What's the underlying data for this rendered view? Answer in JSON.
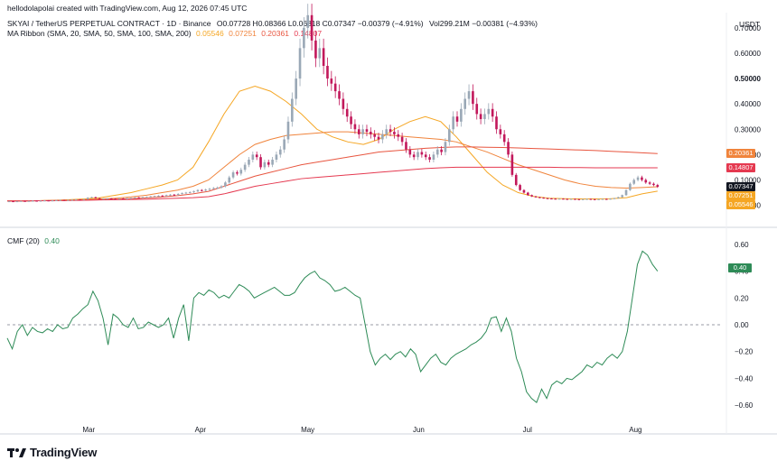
{
  "header": {
    "created_by": "hellodolapolai created with TradingView.com, Aug 12, 2026 07:45 UTC",
    "currency": "USDT",
    "symbol": "SKYAI / TetherUS PERPETUAL CONTRACT · 1D · Binance",
    "ohlc": "O0.07728 H0.08366 L0.06818 C0.07347 −0.00379 (−4.91%)",
    "volume": "Vol299.21M −0.00381 (−4.93%)",
    "ma_label": "MA Ribbon (SMA, 20, SMA, 50, SMA, 100, SMA, 200)",
    "ma_values": [
      "0.05546",
      "0.07251",
      "0.20361",
      "0.14807"
    ]
  },
  "cmf_label": "CMF (20)",
  "cmf_value": "0.40",
  "branding": "TradingView",
  "colors": {
    "up": "#9aa8b6",
    "down": "#c2185b",
    "sma20": "#f5a623",
    "sma50": "#f0843c",
    "sma100": "#e8553f",
    "sma200": "#e53950",
    "cmf": "#2e8b57",
    "price_tag": "#131722"
  },
  "chart_data": [
    {
      "type": "candlestick",
      "title": "SKYAI / TetherUS PERPETUAL CONTRACT · 1D · Binance",
      "x_tick_labels": [
        "Mar",
        "Apr",
        "May",
        "Jun",
        "Jul",
        "Aug"
      ],
      "y_tick_labels": [
        "0.70000",
        "0.60000",
        "0.50000",
        "0.40000",
        "0.30000",
        "0.20000",
        "0.10000",
        "0.00000"
      ],
      "ylim": [
        -0.03,
        0.76
      ],
      "price_tags": [
        {
          "value": 0.20361,
          "label": "0.20361",
          "color": "#f0843c"
        },
        {
          "value": 0.14807,
          "label": "0.14807",
          "color": "#e53950"
        },
        {
          "value": 0.07347,
          "label": "0.07347",
          "color": "#131722"
        },
        {
          "value": 0.07251,
          "label": "0.07251",
          "color": "#f5a623"
        },
        {
          "value": 0.05546,
          "label": "0.05546",
          "color": "#f5a623"
        }
      ],
      "series": [
        {
          "name": "SKYAI close",
          "values": [
            0.016,
            0.015,
            0.016,
            0.017,
            0.016,
            0.017,
            0.018,
            0.017,
            0.018,
            0.019,
            0.018,
            0.019,
            0.02,
            0.021,
            0.02,
            0.021,
            0.022,
            0.023,
            0.022,
            0.024,
            0.03,
            0.032,
            0.028,
            0.025,
            0.026,
            0.027,
            0.026,
            0.025,
            0.027,
            0.026,
            0.028,
            0.029,
            0.031,
            0.03,
            0.032,
            0.033,
            0.035,
            0.036,
            0.038,
            0.037,
            0.04,
            0.042,
            0.041,
            0.045,
            0.048,
            0.05,
            0.052,
            0.055,
            0.06,
            0.058,
            0.062,
            0.065,
            0.068,
            0.07,
            0.075,
            0.09,
            0.11,
            0.13,
            0.125,
            0.14,
            0.16,
            0.18,
            0.2,
            0.19,
            0.15,
            0.17,
            0.16,
            0.18,
            0.2,
            0.22,
            0.26,
            0.33,
            0.42,
            0.5,
            0.62,
            0.7,
            0.75,
            0.65,
            0.58,
            0.62,
            0.55,
            0.5,
            0.48,
            0.45,
            0.42,
            0.38,
            0.35,
            0.32,
            0.3,
            0.28,
            0.3,
            0.29,
            0.28,
            0.27,
            0.26,
            0.28,
            0.3,
            0.29,
            0.28,
            0.27,
            0.25,
            0.22,
            0.2,
            0.19,
            0.21,
            0.2,
            0.19,
            0.18,
            0.2,
            0.22,
            0.21,
            0.25,
            0.3,
            0.35,
            0.33,
            0.38,
            0.42,
            0.45,
            0.4,
            0.36,
            0.34,
            0.36,
            0.38,
            0.35,
            0.3,
            0.28,
            0.25,
            0.2,
            0.12,
            0.08,
            0.06,
            0.05,
            0.04,
            0.035,
            0.032,
            0.03,
            0.028,
            0.027,
            0.026,
            0.025,
            0.026,
            0.025,
            0.024,
            0.025,
            0.024,
            0.023,
            0.024,
            0.025,
            0.024,
            0.023,
            0.024,
            0.025,
            0.024,
            0.026,
            0.028,
            0.032,
            0.04,
            0.06,
            0.085,
            0.1,
            0.11,
            0.1,
            0.09,
            0.085,
            0.08,
            0.073
          ]
        },
        {
          "name": "SMA 20",
          "values": [
            0.017,
            0.017,
            0.018,
            0.02,
            0.022,
            0.025,
            0.03,
            0.04,
            0.05,
            0.065,
            0.08,
            0.1,
            0.15,
            0.25,
            0.36,
            0.45,
            0.47,
            0.45,
            0.41,
            0.36,
            0.3,
            0.27,
            0.25,
            0.24,
            0.26,
            0.3,
            0.33,
            0.35,
            0.33,
            0.27,
            0.2,
            0.13,
            0.08,
            0.05,
            0.035,
            0.028,
            0.026,
            0.025,
            0.025,
            0.026,
            0.03,
            0.045,
            0.056
          ]
        },
        {
          "name": "SMA 50",
          "values": [
            0.017,
            0.017,
            0.018,
            0.019,
            0.02,
            0.022,
            0.025,
            0.028,
            0.033,
            0.04,
            0.05,
            0.06,
            0.075,
            0.1,
            0.15,
            0.2,
            0.24,
            0.26,
            0.275,
            0.28,
            0.285,
            0.29,
            0.29,
            0.285,
            0.28,
            0.275,
            0.27,
            0.265,
            0.26,
            0.25,
            0.23,
            0.21,
            0.185,
            0.16,
            0.14,
            0.12,
            0.1,
            0.085,
            0.075,
            0.07,
            0.068,
            0.07,
            0.073
          ]
        },
        {
          "name": "SMA 100",
          "values": [
            0.017,
            0.017,
            0.018,
            0.019,
            0.02,
            0.021,
            0.022,
            0.024,
            0.026,
            0.029,
            0.033,
            0.038,
            0.045,
            0.055,
            0.075,
            0.095,
            0.115,
            0.13,
            0.145,
            0.16,
            0.17,
            0.18,
            0.19,
            0.2,
            0.21,
            0.215,
            0.22,
            0.225,
            0.228,
            0.23,
            0.23,
            0.229,
            0.228,
            0.226,
            0.224,
            0.222,
            0.22,
            0.218,
            0.216,
            0.213,
            0.21,
            0.207,
            0.204
          ]
        },
        {
          "name": "SMA 200",
          "values": [
            0.017,
            0.017,
            0.018,
            0.018,
            0.019,
            0.02,
            0.021,
            0.022,
            0.023,
            0.024,
            0.026,
            0.028,
            0.03,
            0.034,
            0.045,
            0.06,
            0.075,
            0.085,
            0.095,
            0.105,
            0.11,
            0.115,
            0.12,
            0.125,
            0.13,
            0.135,
            0.14,
            0.145,
            0.148,
            0.15,
            0.15,
            0.15,
            0.15,
            0.15,
            0.15,
            0.15,
            0.149,
            0.149,
            0.148,
            0.148,
            0.148,
            0.148,
            0.148
          ]
        }
      ]
    },
    {
      "type": "line",
      "title": "CMF (20)",
      "y_tick_labels": [
        "0.60",
        "0.40",
        "0.20",
        "0.00",
        "−0.20",
        "−0.40",
        "−0.60"
      ],
      "ylim": [
        -0.66,
        0.66
      ],
      "zero_line": 0,
      "series": [
        {
          "name": "CMF (20)",
          "values": [
            -0.1,
            -0.18,
            -0.05,
            0.0,
            -0.08,
            -0.02,
            -0.05,
            -0.06,
            -0.03,
            -0.05,
            0.0,
            -0.03,
            -0.02,
            0.05,
            0.08,
            0.12,
            0.15,
            0.25,
            0.18,
            0.05,
            -0.15,
            0.08,
            0.05,
            0.0,
            -0.02,
            0.05,
            -0.03,
            -0.02,
            0.02,
            0.0,
            -0.02,
            0.0,
            0.05,
            -0.1,
            0.05,
            0.15,
            -0.12,
            0.2,
            0.24,
            0.22,
            0.26,
            0.24,
            0.2,
            0.22,
            0.2,
            0.25,
            0.3,
            0.28,
            0.25,
            0.2,
            0.22,
            0.24,
            0.26,
            0.28,
            0.25,
            0.22,
            0.22,
            0.24,
            0.3,
            0.35,
            0.38,
            0.4,
            0.35,
            0.33,
            0.3,
            0.25,
            0.26,
            0.28,
            0.25,
            0.22,
            0.2,
            0.0,
            -0.2,
            -0.3,
            -0.25,
            -0.22,
            -0.26,
            -0.22,
            -0.2,
            -0.24,
            -0.18,
            -0.22,
            -0.35,
            -0.3,
            -0.25,
            -0.22,
            -0.28,
            -0.3,
            -0.25,
            -0.22,
            -0.2,
            -0.18,
            -0.15,
            -0.13,
            -0.1,
            -0.05,
            0.05,
            0.06,
            -0.05,
            0.05,
            -0.05,
            -0.25,
            -0.35,
            -0.5,
            -0.55,
            -0.58,
            -0.48,
            -0.55,
            -0.45,
            -0.42,
            -0.44,
            -0.4,
            -0.41,
            -0.38,
            -0.35,
            -0.3,
            -0.32,
            -0.28,
            -0.3,
            -0.25,
            -0.22,
            -0.25,
            -0.2,
            -0.05,
            0.2,
            0.45,
            0.55,
            0.52,
            0.45,
            0.4
          ]
        }
      ]
    }
  ]
}
